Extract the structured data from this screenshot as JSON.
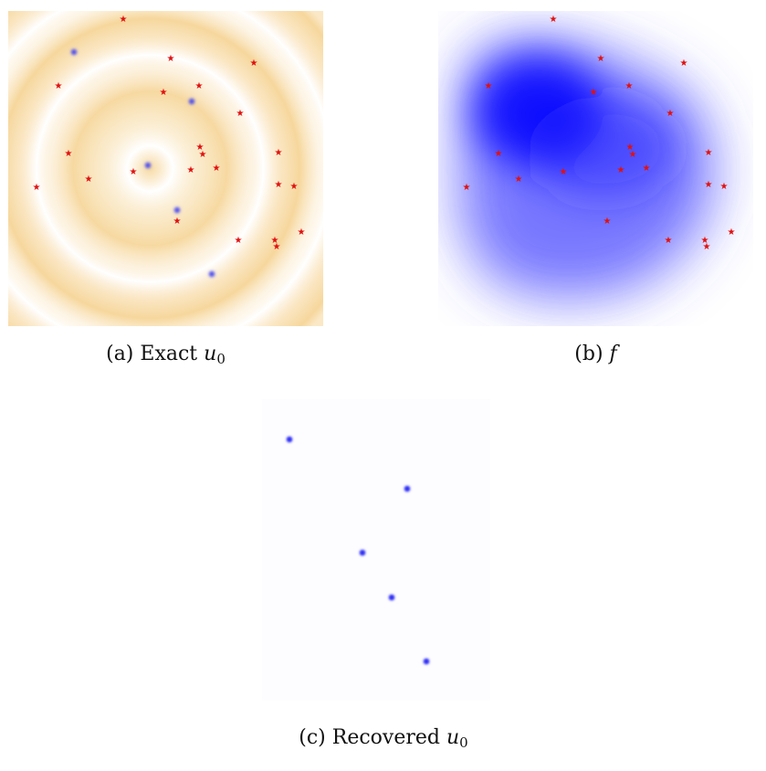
{
  "figure": {
    "panels": [
      {
        "id": "a",
        "caption_label": "(a)",
        "caption_text": "Exact",
        "caption_math": "u",
        "caption_sub": "0",
        "colors": {
          "ring": "#f6d79c",
          "background": "#ffffff",
          "source_marker": "#4a4af0",
          "star_marker": "#e01010"
        }
      },
      {
        "id": "b",
        "caption_label": "(b)",
        "caption_text": "",
        "caption_math": "f",
        "caption_sub": "",
        "colors": {
          "field": "#0000ff",
          "background": "#ffffff",
          "star_marker": "#e01010"
        }
      },
      {
        "id": "c",
        "caption_label": "(c)",
        "caption_text": "Recovered",
        "caption_math": "u",
        "caption_sub": "0",
        "colors": {
          "source_marker": "#2a2af5",
          "background": "#ffffff"
        }
      }
    ]
  }
}
